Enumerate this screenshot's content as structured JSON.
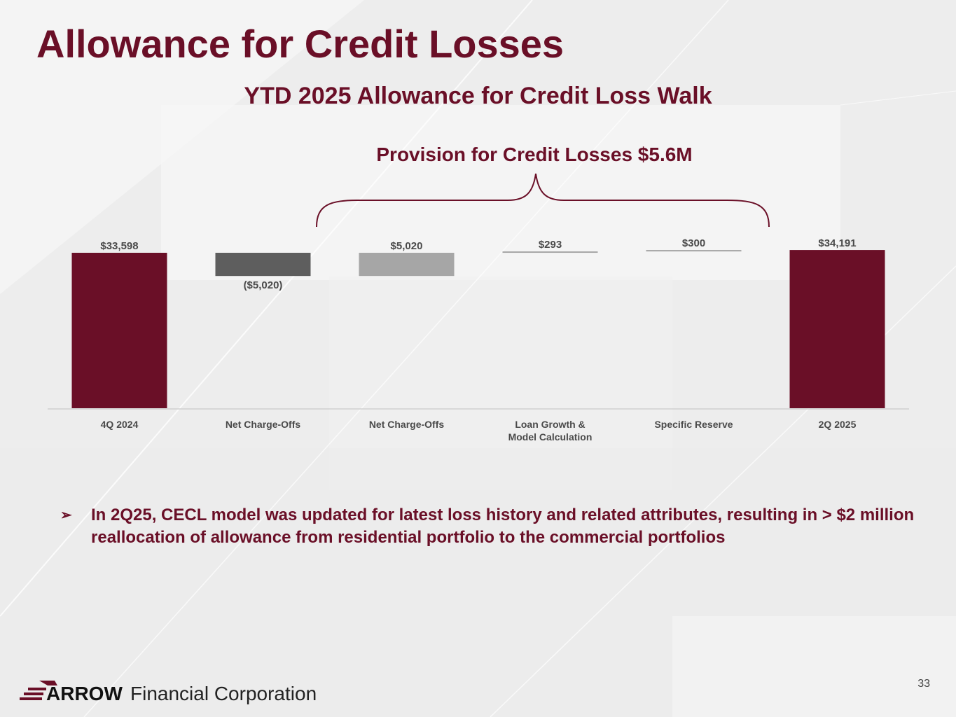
{
  "page": {
    "title": "Allowance for Credit Losses",
    "page_number": "33"
  },
  "bullet": {
    "icon": "arrowhead-bullet-icon",
    "text": "In 2Q25, CECL model was updated for latest loss history and related attributes, resulting in > $2 million reallocation of allowance from residential portfolio to the commercial portfolios"
  },
  "logo": {
    "brand": "ARROW",
    "text": "Financial Corporation"
  },
  "colors": {
    "brand": "#6a0f27",
    "dark_gray": "#5e5e5e",
    "light_gray": "#a6a6a6"
  },
  "chart_data": {
    "type": "bar",
    "subtype": "waterfall",
    "title": "YTD 2025 Allowance for Credit Loss Walk",
    "bracket_annotation": "Provision for Credit Losses $5.6M",
    "categories": [
      "4Q 2024",
      "Net Charge-Offs",
      "Net Charge-Offs",
      "Loan Growth & Model Calculation",
      "Specific Reserve",
      "2Q 2025"
    ],
    "tick_labels": [
      [
        "4Q 2024"
      ],
      [
        "Net Charge-Offs"
      ],
      [
        "Net Charge-Offs"
      ],
      [
        "Loan Growth &",
        "Model Calculation"
      ],
      [
        "Specific Reserve"
      ],
      [
        "2Q 2025"
      ]
    ],
    "values": [
      33598,
      -5020,
      5020,
      293,
      300,
      34191
    ],
    "measures": [
      "total",
      "relative",
      "relative",
      "relative",
      "relative",
      "total"
    ],
    "data_labels": [
      "$33,598",
      "($5,020)",
      "$5,020",
      "$293",
      "$300",
      "$34,191"
    ],
    "colors": [
      "#6a0f27",
      "#5e5e5e",
      "#a6a6a6",
      "#a6a6a6",
      "#a6a6a6",
      "#6a0f27"
    ],
    "bracket_categories": [
      2,
      4
    ]
  }
}
